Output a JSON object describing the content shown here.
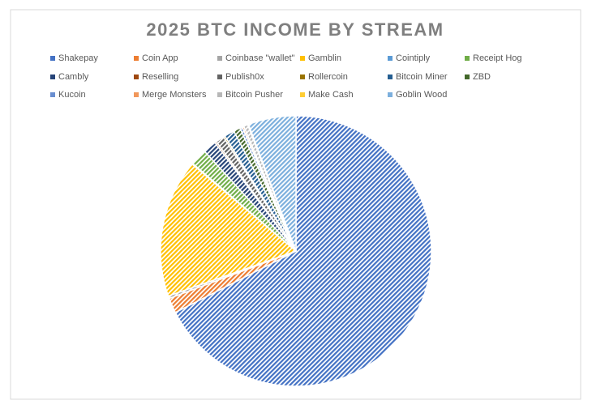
{
  "chart_data": {
    "type": "pie",
    "title": "2025 BTC INCOME BY STREAM",
    "categories": [
      "Shakepay",
      "Coin App",
      "Coinbase \"wallet\"",
      "Gamblin",
      "Cointiply",
      "Receipt Hog",
      "Cambly",
      "Reselling",
      "Publish0x",
      "Rollercoin",
      "Bitcoin Miner",
      "ZBD",
      "Kucoin",
      "Merge Monsters",
      "Bitcoin Pusher",
      "Make Cash",
      "Goblin Wood"
    ],
    "values": [
      67.5,
      1.8,
      0.3,
      16.5,
      0.1,
      2,
      1.6,
      0.2,
      1,
      0.2,
      1.2,
      0.8,
      0.3,
      0.2,
      0.5,
      0.1,
      5.7
    ],
    "colors": [
      "#4472c4",
      "#ed7d31",
      "#a5a5a5",
      "#ffc000",
      "#5b9bd5",
      "#70ad47",
      "#264478",
      "#9e480e",
      "#636363",
      "#997300",
      "#255e91",
      "#43682b",
      "#698ed0",
      "#f1975a",
      "#b7b7b7",
      "#ffcd33",
      "#7cafdd"
    ],
    "legend": "top"
  }
}
